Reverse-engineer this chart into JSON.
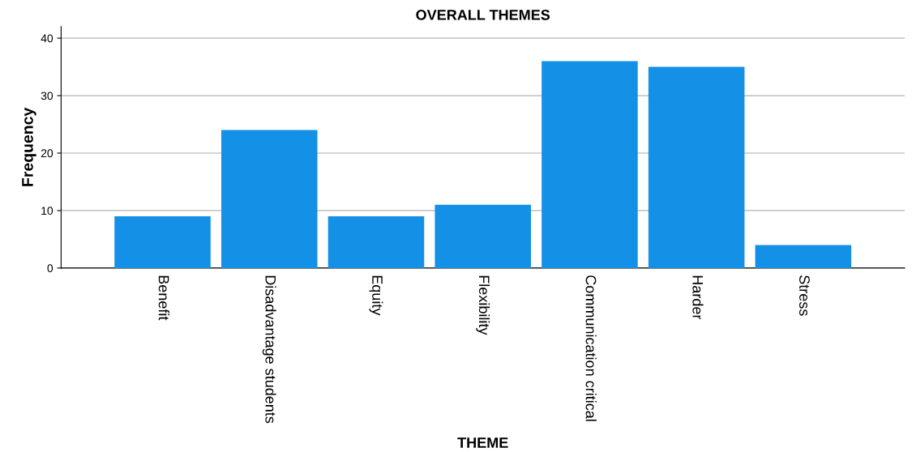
{
  "chart_data": {
    "type": "bar",
    "title": "OVERALL THEMES",
    "xlabel": "THEME",
    "ylabel": "Frequency",
    "categories": [
      "Benefit",
      "Disadvantage students",
      "Equity",
      "Flexibility",
      "Communication critical",
      "Harder",
      "Stress"
    ],
    "values": [
      9,
      24,
      9,
      11,
      36,
      35,
      4
    ],
    "color": "#1490e6",
    "ylim": [
      0,
      42
    ],
    "yticks": [
      0,
      10,
      20,
      30,
      40
    ],
    "grid": "y"
  }
}
